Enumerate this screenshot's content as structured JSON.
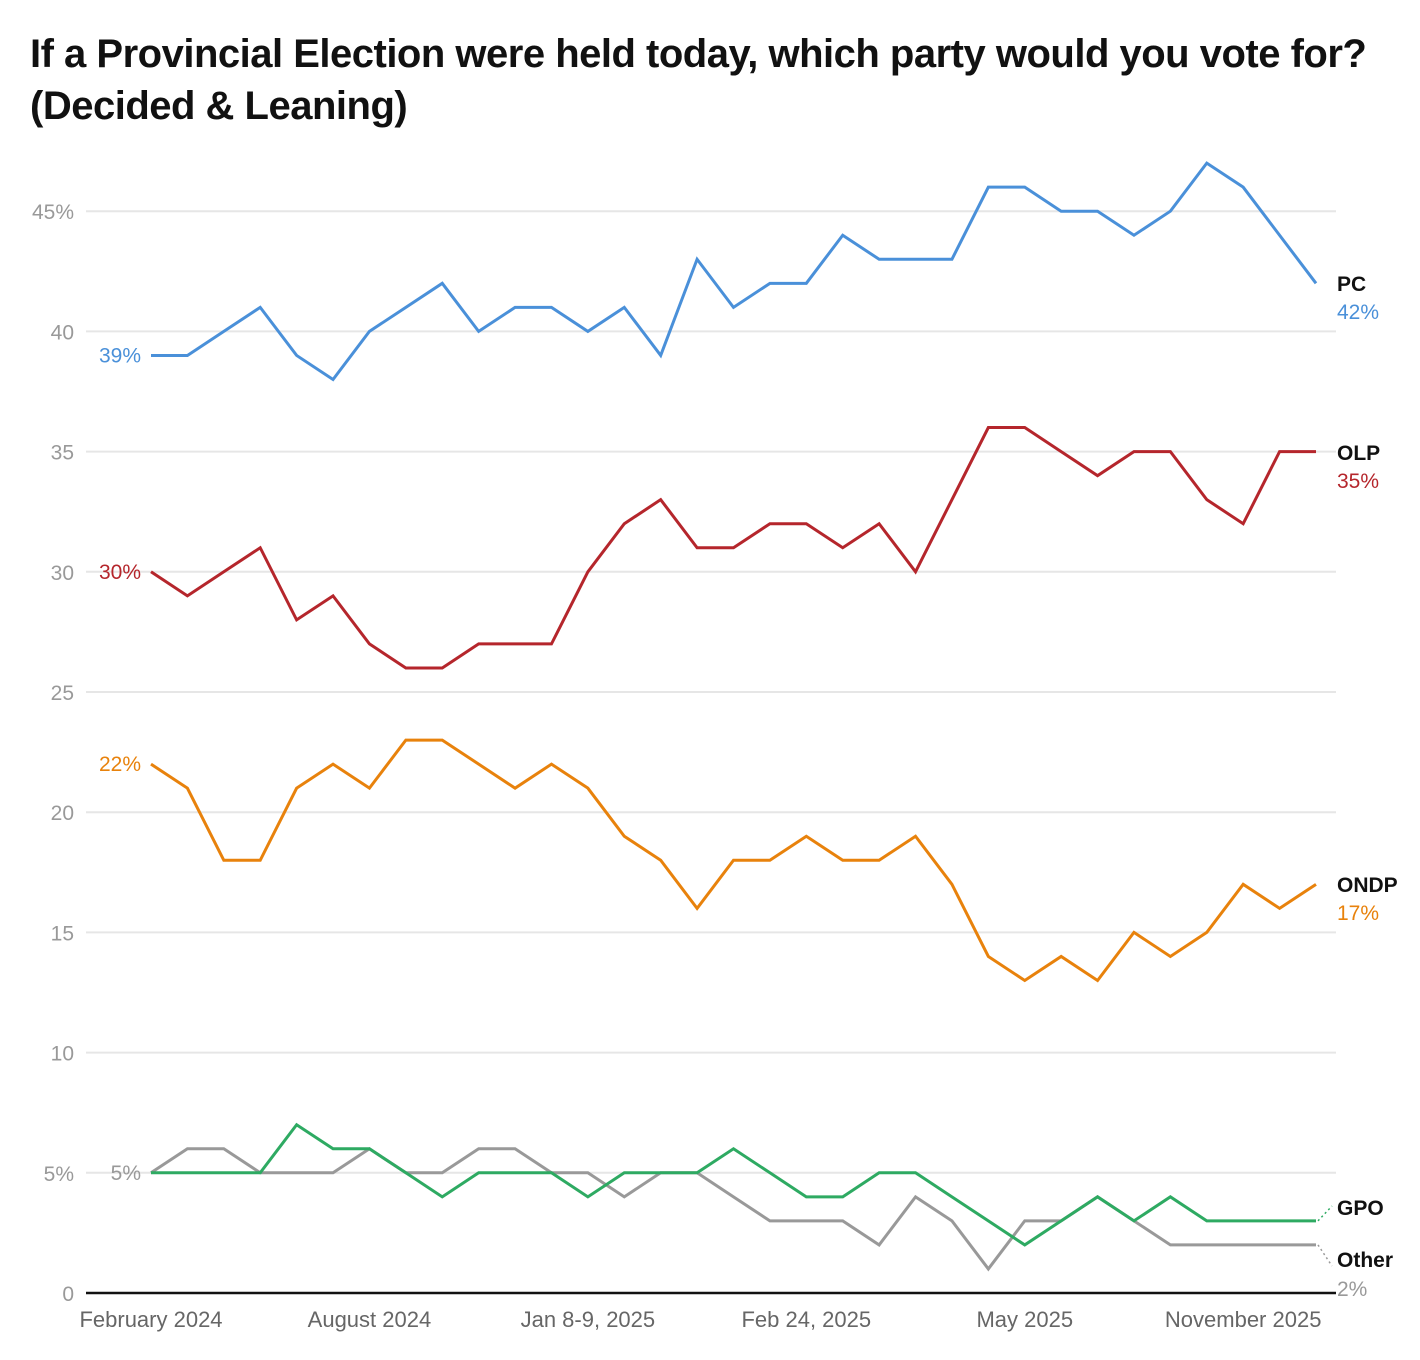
{
  "chart_data": {
    "type": "line",
    "title": "If a Provincial Election were held today, which party would you vote for? (Decided & Leaning)",
    "xlabel": "",
    "ylabel": "",
    "ylim": [
      0,
      47
    ],
    "y_ticks": [
      0,
      5,
      10,
      15,
      20,
      25,
      30,
      35,
      40,
      45
    ],
    "y_tick_labels": [
      "0",
      "5%",
      "10",
      "15",
      "20",
      "25",
      "30",
      "35",
      "40",
      "45%"
    ],
    "x_count": 33,
    "x_tick_labels": [
      {
        "index": 0,
        "label": "February 2024"
      },
      {
        "index": 6,
        "label": "August 2024"
      },
      {
        "index": 12,
        "label": "Jan 8-9, 2025"
      },
      {
        "index": 18,
        "label": "Feb 24, 2025"
      },
      {
        "index": 24,
        "label": "May 2025"
      },
      {
        "index": 30,
        "label": "November 2025"
      }
    ],
    "grid": true,
    "series": [
      {
        "name": "PC",
        "color": "#4a90d9",
        "start_label": "39%",
        "end_label": "42%",
        "values": [
          39,
          39,
          40,
          41,
          39,
          38,
          40,
          41,
          42,
          40,
          41,
          41,
          40,
          41,
          39,
          43,
          41,
          42,
          42,
          44,
          43,
          43,
          43,
          46,
          46,
          45,
          45,
          44,
          45,
          47,
          46,
          44,
          42
        ]
      },
      {
        "name": "OLP",
        "color": "#b5262c",
        "start_label": "30%",
        "end_label": "35%",
        "values": [
          30,
          29,
          30,
          31,
          28,
          29,
          27,
          26,
          26,
          27,
          27,
          27,
          30,
          32,
          33,
          31,
          31,
          32,
          32,
          31,
          32,
          30,
          33,
          36,
          36,
          35,
          34,
          35,
          35,
          33,
          32,
          35,
          35
        ]
      },
      {
        "name": "ONDP",
        "color": "#e8820c",
        "start_label": "22%",
        "end_label": "17%",
        "values": [
          22,
          21,
          18,
          18,
          21,
          22,
          21,
          23,
          23,
          22,
          21,
          22,
          21,
          19,
          18,
          16,
          18,
          18,
          19,
          18,
          18,
          19,
          17,
          14,
          13,
          14,
          13,
          15,
          14,
          15,
          17,
          16,
          17
        ]
      },
      {
        "name": "GPO",
        "color": "#2eaa62",
        "start_label": "5%",
        "end_label": "",
        "values": [
          5,
          5,
          5,
          5,
          7,
          6,
          6,
          5,
          4,
          5,
          5,
          5,
          4,
          5,
          5,
          5,
          6,
          5,
          4,
          4,
          5,
          5,
          4,
          3,
          2,
          3,
          4,
          3,
          4,
          3,
          3,
          3,
          3
        ]
      },
      {
        "name": "Other",
        "color": "#999999",
        "start_label": "",
        "end_label": "2%",
        "values": [
          5,
          6,
          6,
          5,
          5,
          5,
          6,
          5,
          5,
          6,
          6,
          5,
          5,
          4,
          5,
          5,
          4,
          3,
          3,
          3,
          2,
          4,
          3,
          1,
          3,
          3,
          4,
          3,
          2,
          2,
          2,
          2,
          2
        ]
      }
    ]
  }
}
